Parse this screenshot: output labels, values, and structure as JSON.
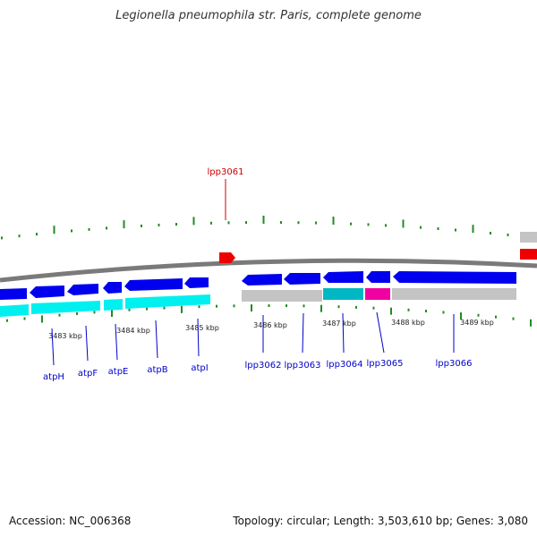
{
  "title": "Legionella pneumophila str. Paris, complete genome",
  "footer": {
    "accession": "Accession: NC_006368",
    "summary": "Topology: circular; Length: 3,503,610 bp; Genes: 3,080"
  },
  "colors": {
    "backbone": "#7a7a7a",
    "gene_blue": "#0000ee",
    "track_cyan": "#00f0f0",
    "track_gray": "#c4c4c4",
    "track_teal": "#00b8c4",
    "track_magenta": "#f000a0",
    "highlight_red": "#ee0000",
    "ticks": "#228b22",
    "label_blue": "#0000cc",
    "label_red": "#cc0000"
  },
  "scale_labels": [
    "3483 kbp",
    "3484 kbp",
    "3485 kbp",
    "3486 kbp",
    "3487 kbp",
    "3488 kbp",
    "3489 kbp"
  ],
  "gene_labels": [
    "atpH",
    "atpF",
    "atpE",
    "atpB",
    "atpI",
    "lpp3062",
    "lpp3063",
    "lpp3064",
    "lpp3065",
    "lpp3066"
  ],
  "highlight_label": "lpp3061"
}
